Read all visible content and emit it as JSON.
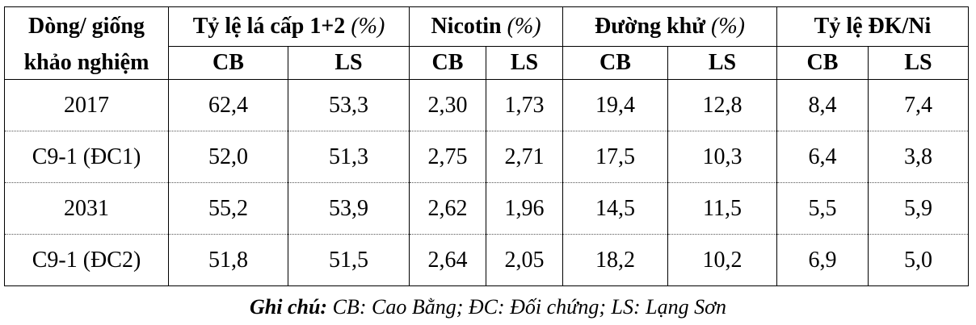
{
  "header": {
    "line_col": "Dòng/ giống",
    "line_col_2": "khảo nghiệm",
    "groups": [
      {
        "name": "Tỷ lệ lá cấp 1+2",
        "unit": "(%)"
      },
      {
        "name": "Nicotin",
        "unit": "(%)"
      },
      {
        "name": "Đường khử",
        "unit": "(%)"
      },
      {
        "name": "Tỷ lệ ĐK/Ni",
        "unit": ""
      }
    ],
    "sub": [
      "CB",
      "LS",
      "CB",
      "LS",
      "CB",
      "LS",
      "CB",
      "LS"
    ]
  },
  "rows": [
    {
      "name": "2017",
      "values": [
        "62,4",
        "53,3",
        "2,30",
        "1,73",
        "19,4",
        "12,8",
        "8,4",
        "7,4"
      ]
    },
    {
      "name": "C9-1 (ĐC1)",
      "values": [
        "52,0",
        "51,3",
        "2,75",
        "2,71",
        "17,5",
        "10,3",
        "6,4",
        "3,8"
      ]
    },
    {
      "name": "2031",
      "values": [
        "55,2",
        "53,9",
        "2,62",
        "1,96",
        "14,5",
        "11,5",
        "5,5",
        "5,9"
      ]
    },
    {
      "name": "C9-1 (ĐC2)",
      "values": [
        "51,8",
        "51,5",
        "2,64",
        "2,05",
        "18,2",
        "10,2",
        "6,9",
        "5,0"
      ]
    }
  ],
  "note": {
    "label": "Ghi chú:",
    "text": " CB: Cao Bằng; ĐC: Đối chứng; LS: Lạng Sơn"
  }
}
